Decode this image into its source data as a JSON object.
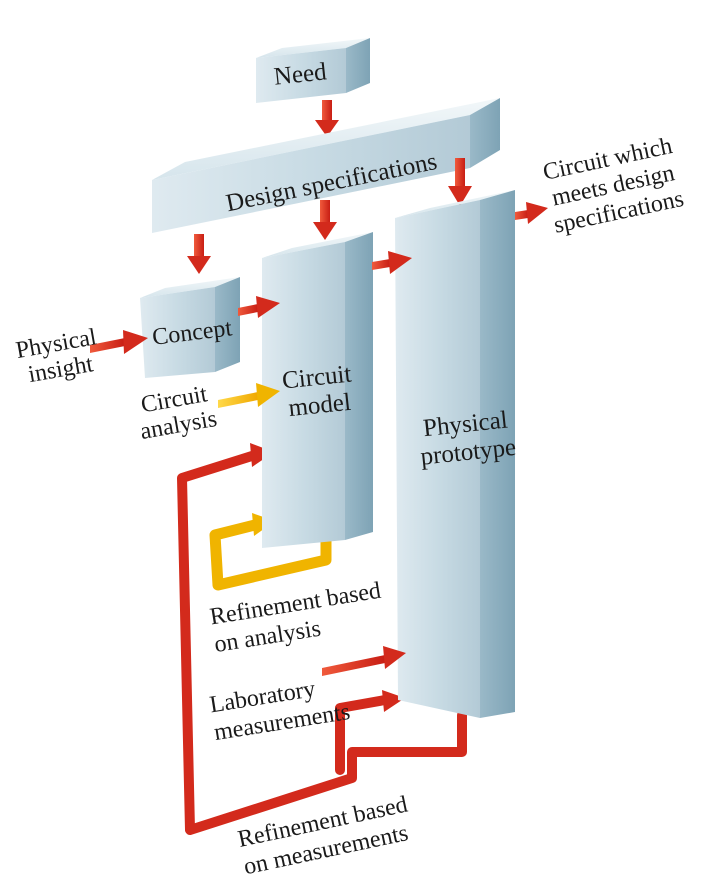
{
  "blocks": {
    "need": "Need",
    "design_specifications": "Design specifications",
    "concept": "Concept",
    "circuit_model": [
      "Circuit",
      "model"
    ],
    "physical_prototype": [
      "Physical",
      "prototype"
    ]
  },
  "labels": {
    "physical_insight": [
      "Physical",
      "insight"
    ],
    "circuit_analysis": [
      "Circuit",
      "analysis"
    ],
    "refinement_analysis": [
      "Refinement based",
      "on analysis"
    ],
    "laboratory_measurements": [
      "Laboratory",
      "measurements"
    ],
    "refinement_measurements": [
      "Refinement based",
      "on measurements"
    ],
    "output": [
      "Circuit which",
      "meets design",
      "specifications"
    ]
  },
  "colors": {
    "block_front": "#c9dde6",
    "block_top": "#e6f0f4",
    "block_side": "#8fb1c1",
    "arrow_red": "#d8281c",
    "arrow_yellow": "#f2b705"
  }
}
